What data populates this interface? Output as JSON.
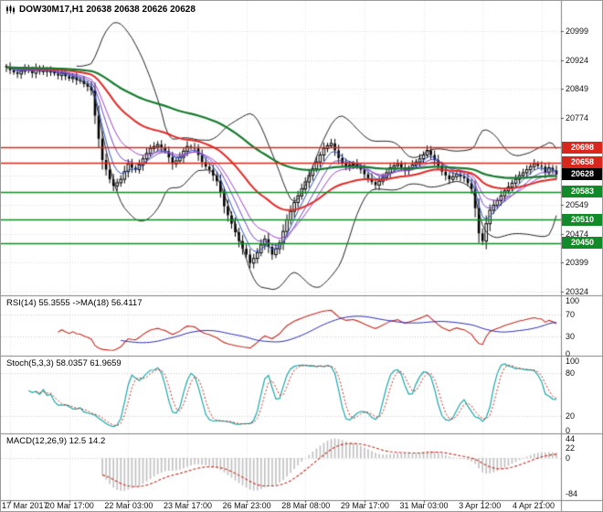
{
  "main_chart": {
    "title": "DOW30M17,H1 20638 20638 20626 20628",
    "y_ticks": [
      20999,
      20924,
      20849,
      20774,
      20549,
      20474,
      20399,
      20324
    ],
    "scale": {
      "price_top": 20999,
      "y_top": 33,
      "price_bottom": 20324,
      "y_bottom": 318
    },
    "levels": [
      {
        "price": 20698,
        "color": "#d8281e",
        "type": "resistance"
      },
      {
        "price": 20658,
        "color": "#d8281e",
        "type": "resistance"
      },
      {
        "price": 20583,
        "color": "#128a28",
        "type": "support"
      },
      {
        "price": 20510,
        "color": "#128a28",
        "type": "support"
      },
      {
        "price": 20450,
        "color": "#128a28",
        "type": "support"
      }
    ],
    "current_price": {
      "value": 20628,
      "box_color": "#000000"
    },
    "colors": {
      "candle": "#000000",
      "bollinger": "#222222",
      "ma_fast_fan": [
        "#2a52be",
        "#6a44c8",
        "#9a3fc8"
      ],
      "ma_red": "#e02926",
      "ma_green": "#157a2e",
      "grid": "#d9d9d9"
    }
  },
  "chart_data": {
    "type": "candlestick",
    "symbol": "DOW30M17",
    "timeframe": "H1",
    "title": "DOW30M17,H1 20638 20638 20626 20628",
    "ohlc_display": {
      "open": 20638,
      "high": 20638,
      "low": 20626,
      "close": 20628
    },
    "y_range": [
      20324,
      20999
    ],
    "x_labels": [
      "17 Mar 2017",
      "20 Mar 17:00",
      "22 Mar 03:00",
      "23 Mar 17:00",
      "26 Mar 23:00",
      "28 Mar 08:00",
      "29 Mar 17:00",
      "31 Mar 03:00",
      "3 Apr 12:00",
      "4 Apr 21:00"
    ],
    "x_label_indices": [
      1,
      17,
      33,
      49,
      65,
      81,
      97,
      113,
      129,
      145
    ],
    "levels": [
      20698,
      20658,
      20583,
      20510,
      20450
    ],
    "current_close": 20628,
    "closes": [
      20905,
      20898,
      20892,
      20888,
      20895,
      20902,
      20897,
      20890,
      20902,
      20894,
      20899,
      20893,
      20896,
      20889,
      20884,
      20890,
      20882,
      20876,
      20880,
      20872,
      20870,
      20862,
      20855,
      20845,
      20780,
      20720,
      20665,
      20640,
      20615,
      20598,
      20606,
      20615,
      20635,
      20655,
      20645,
      20640,
      20652,
      20668,
      20682,
      20695,
      20700,
      20705,
      20696,
      20688,
      20672,
      20655,
      20663,
      20672,
      20688,
      20700,
      20698,
      20695,
      20678,
      20660,
      20648,
      20640,
      20625,
      20610,
      20580,
      20545,
      20522,
      20500,
      20478,
      20455,
      20435,
      20420,
      20398,
      20410,
      20425,
      20445,
      20460,
      20440,
      20420,
      20435,
      20450,
      20480,
      20510,
      20532,
      20555,
      20572,
      20590,
      20608,
      20625,
      20642,
      20660,
      20678,
      20695,
      20702,
      20708,
      20690,
      20670,
      20658,
      20648,
      20652,
      20655,
      20648,
      20640,
      20628,
      20618,
      20608,
      20600,
      20610,
      20620,
      20632,
      20645,
      20650,
      20655,
      20646,
      20638,
      20645,
      20652,
      20660,
      20668,
      20678,
      20690,
      20678,
      20665,
      20650,
      20635,
      20625,
      20615,
      20622,
      20628,
      20622,
      20618,
      20605,
      20590,
      20540,
      20475,
      20455,
      20500,
      20535,
      20548,
      20560,
      20572,
      20585,
      20595,
      20605,
      20615,
      20625,
      20632,
      20640,
      20648,
      20655,
      20650,
      20648,
      20632,
      20645,
      20638,
      20628
    ],
    "indicators": [
      {
        "name": "RSI",
        "params": "14",
        "values_shown": "55.3555 ->MA(18) 56.4117"
      },
      {
        "name": "Stochastic",
        "params": "5,3,3",
        "values_shown": "58.0357 61.9659"
      },
      {
        "name": "MACD",
        "params": "12,26,9",
        "values_shown": "12.5 14.2"
      }
    ]
  },
  "rsi": {
    "label": "RSI(14) 55.3555 ->MA(18) 56.4117",
    "ticks": [
      100,
      70,
      30,
      0
    ],
    "levels": [
      70,
      30
    ],
    "line_color": "#c42a21",
    "ma_color": "#2a2ab4"
  },
  "stoch": {
    "label": "Stoch(5,3,3) 58.0357 61.9659",
    "ticks": [
      100,
      80,
      20,
      0
    ],
    "levels": [
      80,
      20
    ],
    "k_color": "#18a8a8",
    "d_color": "#c42a21"
  },
  "macd": {
    "label": "MACD(12,26,9) 12.5 14.2",
    "ticks": [
      44,
      22,
      0,
      -84
    ],
    "range": [
      -90,
      50
    ],
    "hist_color": "#bfbfbf",
    "signal_color": "#c42a21"
  }
}
